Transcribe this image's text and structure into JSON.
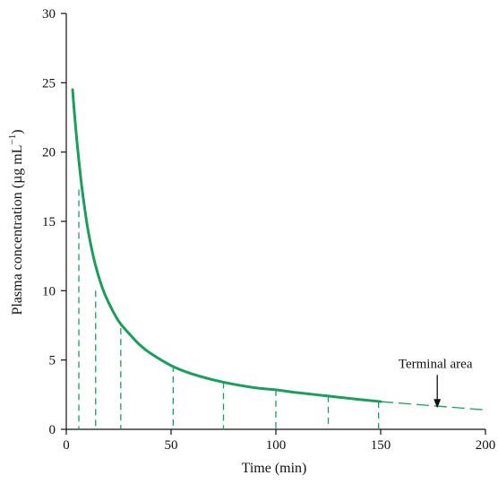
{
  "chart_data": {
    "type": "line",
    "xlabel": "Time   (min)",
    "ylabel": {
      "main": "Plasma  concentration  (µg mL",
      "sup": "−1",
      "close": ")"
    },
    "xlim": [
      0,
      200
    ],
    "ylim": [
      0,
      30
    ],
    "xticks": [
      0,
      50,
      100,
      150,
      200
    ],
    "yticks": [
      0,
      5,
      10,
      15,
      20,
      25,
      30
    ],
    "grid": false,
    "colors": {
      "curve": "#1a9e5c",
      "axis": "#111111"
    },
    "curve": {
      "x": [
        3,
        4,
        5,
        6,
        7,
        8,
        10,
        12,
        14,
        17,
        20,
        25,
        30,
        35,
        40,
        50,
        60,
        75,
        90,
        100,
        110,
        125,
        140,
        150
      ],
      "y": [
        24.5,
        22.6,
        20.9,
        19.4,
        18.0,
        16.8,
        14.7,
        13.1,
        11.8,
        10.3,
        9.2,
        7.8,
        6.9,
        6.1,
        5.5,
        4.6,
        4.0,
        3.4,
        3.0,
        2.85,
        2.65,
        2.4,
        2.15,
        2.0
      ]
    },
    "extrapolation": {
      "x": [
        150,
        200
      ],
      "y": [
        2.0,
        1.4
      ]
    },
    "partition_lines": [
      {
        "x": 6,
        "y": 17.3
      },
      {
        "x": 14,
        "y": 10.0
      },
      {
        "x": 26,
        "y": 7.3
      },
      {
        "x": 51,
        "y": 4.6
      },
      {
        "x": 75,
        "y": 3.4
      },
      {
        "x": 100,
        "y": 2.85
      },
      {
        "x": 125,
        "y": 2.4
      },
      {
        "x": 149,
        "y": 2.0
      }
    ],
    "annotations": [
      {
        "text": "Terminal area",
        "target_x": 177,
        "target_y": 1.6
      }
    ]
  }
}
